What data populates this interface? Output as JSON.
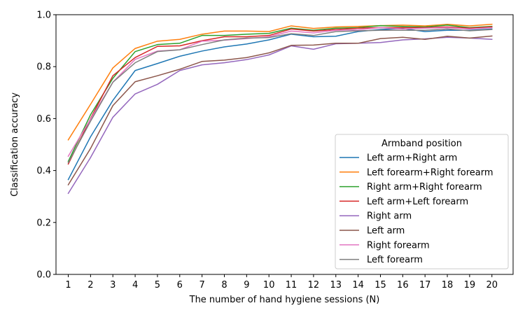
{
  "chart_data": {
    "type": "line",
    "xlabel": "The number of hand hygiene sessions (N)",
    "ylabel": "Classification accuracy",
    "xlim": [
      0.45,
      20.95
    ],
    "ylim": [
      0.0,
      1.0
    ],
    "x": [
      1,
      2,
      3,
      4,
      5,
      6,
      7,
      8,
      9,
      10,
      11,
      12,
      13,
      14,
      15,
      16,
      17,
      18,
      19,
      20
    ],
    "yticks": [
      "0.0",
      "0.2",
      "0.4",
      "0.6",
      "0.8",
      "1.0"
    ],
    "xticks": [
      "1",
      "2",
      "3",
      "4",
      "5",
      "6",
      "7",
      "8",
      "9",
      "10",
      "11",
      "12",
      "13",
      "14",
      "15",
      "16",
      "17",
      "18",
      "19",
      "20"
    ],
    "grid": false,
    "legend": {
      "title": "Armband position",
      "placement": "lower-right"
    },
    "series": [
      {
        "name": "Left arm+Right arm",
        "color": "#1f77b4",
        "values": [
          0.365,
          0.53,
          0.67,
          0.785,
          0.812,
          0.84,
          0.86,
          0.876,
          0.887,
          0.903,
          0.925,
          0.915,
          0.917,
          0.935,
          0.943,
          0.947,
          0.935,
          0.94,
          0.94,
          0.945
        ]
      },
      {
        "name": "Left forearm+Right forearm",
        "color": "#ff7f0e",
        "values": [
          0.518,
          0.655,
          0.795,
          0.87,
          0.898,
          0.905,
          0.925,
          0.937,
          0.937,
          0.935,
          0.957,
          0.947,
          0.953,
          0.955,
          0.958,
          0.96,
          0.957,
          0.963,
          0.957,
          0.963
        ]
      },
      {
        "name": "Right arm+Right forearm",
        "color": "#2ca02c",
        "values": [
          0.435,
          0.615,
          0.755,
          0.858,
          0.885,
          0.89,
          0.92,
          0.92,
          0.925,
          0.928,
          0.948,
          0.94,
          0.948,
          0.95,
          0.958,
          0.955,
          0.953,
          0.96,
          0.95,
          0.955
        ]
      },
      {
        "name": "Left arm+Left forearm",
        "color": "#d62728",
        "values": [
          0.425,
          0.6,
          0.765,
          0.835,
          0.878,
          0.88,
          0.9,
          0.915,
          0.915,
          0.92,
          0.945,
          0.937,
          0.943,
          0.948,
          0.95,
          0.95,
          0.95,
          0.953,
          0.948,
          0.953
        ]
      },
      {
        "name": "Right arm",
        "color": "#9467bd",
        "values": [
          0.312,
          0.45,
          0.605,
          0.695,
          0.732,
          0.785,
          0.807,
          0.815,
          0.827,
          0.845,
          0.88,
          0.867,
          0.888,
          0.89,
          0.893,
          0.903,
          0.907,
          0.913,
          0.91,
          0.905
        ]
      },
      {
        "name": "Left arm",
        "color": "#8c564b",
        "values": [
          0.345,
          0.485,
          0.65,
          0.742,
          0.765,
          0.79,
          0.82,
          0.825,
          0.835,
          0.853,
          0.882,
          0.883,
          0.89,
          0.89,
          0.908,
          0.913,
          0.905,
          0.917,
          0.91,
          0.918
        ]
      },
      {
        "name": "Right forearm",
        "color": "#e377c2",
        "values": [
          0.455,
          0.598,
          0.74,
          0.828,
          0.86,
          0.865,
          0.898,
          0.902,
          0.908,
          0.915,
          0.937,
          0.93,
          0.94,
          0.942,
          0.95,
          0.945,
          0.948,
          0.95,
          0.945,
          0.95
        ]
      },
      {
        "name": "Left forearm",
        "color": "#7f7f7f",
        "values": [
          0.43,
          0.59,
          0.74,
          0.815,
          0.858,
          0.865,
          0.885,
          0.903,
          0.91,
          0.912,
          0.927,
          0.92,
          0.935,
          0.938,
          0.94,
          0.94,
          0.94,
          0.945,
          0.938,
          0.943
        ]
      }
    ]
  }
}
